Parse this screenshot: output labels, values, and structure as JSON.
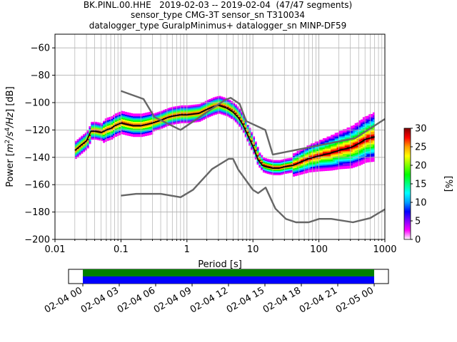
{
  "titles": [
    "BK.PINL.00.HHE   2019-02-03 -- 2019-02-04  (47/47 segments)",
    "sensor_type CMG-3T sensor_sn T310034",
    "datalogger_type GuralpMinimus+ datalogger_sn MINP-DF59"
  ],
  "chart_data": [
    {
      "type": "heatmap",
      "xlabel": "Period [s]",
      "ylabel": "Power [m^2/s^4/Hz] [dB]",
      "xscale": "log",
      "xlim": [
        0.01,
        1000
      ],
      "ylim": [
        -200,
        -50
      ],
      "x_tick_labels": [
        "0.01",
        "0.1",
        "1",
        "10",
        "100",
        "1000"
      ],
      "y_tick_labels": [
        "-200",
        "-180",
        "-160",
        "-140",
        "-120",
        "-100",
        "-80",
        "-60"
      ],
      "grid": true,
      "colorbar": {
        "label": "[%]",
        "range": [
          0,
          30
        ],
        "tick_labels": [
          "0",
          "5",
          "10",
          "15",
          "20",
          "25",
          "30"
        ],
        "colormap": [
          "#ffffff",
          "#ff00ff",
          "#8000ff",
          "#0000ff",
          "#00a0ff",
          "#00ffff",
          "#00ff80",
          "#00ff00",
          "#80ff00",
          "#ffff00",
          "#ffa000",
          "#ff0000",
          "#800000"
        ]
      },
      "series": [
        {
          "role": "mean",
          "color": "#000000",
          "x": [
            0.02,
            0.025,
            0.03,
            0.035,
            0.04,
            0.05,
            0.06,
            0.07,
            0.08,
            0.1,
            0.12,
            0.15,
            0.2,
            0.25,
            0.3,
            0.4,
            0.5,
            0.6,
            0.8,
            1,
            1.5,
            2,
            2.5,
            3,
            4,
            5,
            6,
            7,
            8,
            10,
            12,
            14,
            16,
            20,
            25,
            30,
            40,
            50,
            70,
            100,
            150,
            200,
            300,
            400,
            500,
            700
          ],
          "y": [
            -135,
            -131,
            -128,
            -121,
            -121,
            -122,
            -120,
            -119,
            -117,
            -115,
            -116,
            -117,
            -117,
            -116,
            -115,
            -113,
            -111,
            -110,
            -109,
            -109,
            -108,
            -105,
            -103,
            -102,
            -104,
            -107,
            -111,
            -116,
            -122,
            -132,
            -142,
            -146,
            -147,
            -148,
            -148,
            -147,
            -146,
            -144,
            -141,
            -139,
            -137,
            -135,
            -133,
            -130,
            -127,
            -125
          ]
        },
        {
          "role": "high-noise-model",
          "color": "#666666",
          "x": [
            0.1,
            0.22,
            0.32,
            0.8,
            3.8,
            4.6,
            6.3,
            7.9,
            15.4,
            20,
            354.8,
            1000
          ],
          "y": [
            -91.5,
            -97.4,
            -110.5,
            -120,
            -98,
            -96.5,
            -101,
            -113.5,
            -120,
            -138,
            -126,
            -112
          ]
        },
        {
          "role": "low-noise-model",
          "color": "#666666",
          "x": [
            0.1,
            0.17,
            0.4,
            0.8,
            1.24,
            2.4,
            4.3,
            5,
            6,
            10,
            12,
            15.6,
            21.9,
            31.6,
            45,
            70,
            101,
            154,
            328,
            600,
            1000
          ],
          "y": [
            -168,
            -166.7,
            -166.7,
            -169.2,
            -163.7,
            -148.6,
            -141.1,
            -141.1,
            -149,
            -163.8,
            -166.2,
            -162.1,
            -177.5,
            -185,
            -187.5,
            -187.5,
            -185,
            -185,
            -187.5,
            -184.4,
            -178
          ]
        }
      ]
    },
    {
      "type": "bar",
      "role": "data-coverage",
      "x_tick_labels": [
        "02-04 00",
        "02-04 03",
        "02-04 06",
        "02-04 09",
        "02-04 12",
        "02-04 15",
        "02-04 18",
        "02-04 21",
        "02-05 00"
      ],
      "coverage": [
        {
          "fraction": 1.0,
          "color": "#008000"
        },
        {
          "fraction": 1.0,
          "color": "#0000ff"
        }
      ],
      "colors": {
        "used": "#008000",
        "available": "#0000ff"
      }
    }
  ]
}
